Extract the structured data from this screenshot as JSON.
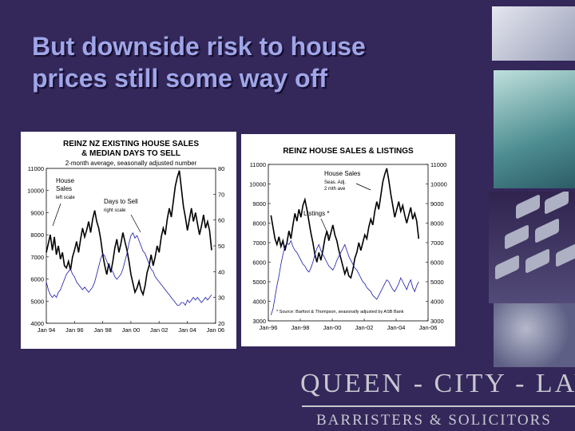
{
  "slide": {
    "title_lines": [
      "But downside risk to house",
      "prices still some way off"
    ],
    "logo_line1": "QUEEN - CITY - LAW",
    "logo_line2": "BARRISTERS & SOLICITORS",
    "colors": {
      "background": "#34275a",
      "title": "#9fa6e8",
      "series_sales": "#000000",
      "series_secondary": "#1a1aa8"
    }
  },
  "chart_data": [
    {
      "type": "line",
      "title": [
        "REINZ NZ EXISTING HOUSE SALES",
        "& MEDIAN DAYS TO SELL"
      ],
      "subtitle": "2-month average, seasonally adjusted number",
      "x_ticks": [
        "Jan 94",
        "Jan 96",
        "Jan 98",
        "Jan 00",
        "Jan 02",
        "Jan 04",
        "Jan 06"
      ],
      "x_range": [
        1994.0,
        2006.6
      ],
      "y_left": {
        "range": [
          4000,
          11000
        ],
        "ticks": [
          4000,
          5000,
          6000,
          7000,
          8000,
          9000,
          10000,
          11000
        ]
      },
      "y_right": {
        "range": [
          20,
          80
        ],
        "ticks": [
          20,
          30,
          40,
          50,
          60,
          70,
          80
        ]
      },
      "annotations": [
        {
          "lines": [
            "House",
            "Sales"
          ],
          "small": "left scale"
        },
        {
          "lines": [
            "Days to Sell"
          ],
          "small": "right scale"
        }
      ],
      "series": [
        {
          "axis": "left",
          "x": [
            1994.0,
            1994.15,
            1994.3,
            1994.45,
            1994.6,
            1994.75,
            1994.9,
            1995.05,
            1995.2,
            1995.35,
            1995.5,
            1995.65,
            1995.8,
            1995.95,
            1996.1,
            1996.25,
            1996.4,
            1996.55,
            1996.7,
            1996.85,
            1997.0,
            1997.15,
            1997.3,
            1997.45,
            1997.6,
            1997.75,
            1997.9,
            1998.05,
            1998.2,
            1998.35,
            1998.5,
            1998.65,
            1998.8,
            1998.95,
            1999.1,
            1999.25,
            1999.4,
            1999.55,
            1999.7,
            1999.85,
            2000.0,
            2000.15,
            2000.3,
            2000.45,
            2000.6,
            2000.75,
            2000.9,
            2001.05,
            2001.2,
            2001.35,
            2001.5,
            2001.65,
            2001.8,
            2001.95,
            2002.1,
            2002.25,
            2002.4,
            2002.55,
            2002.7,
            2002.85,
            2003.0,
            2003.15,
            2003.3,
            2003.45,
            2003.6,
            2003.75,
            2003.9,
            2004.05,
            2004.2,
            2004.35,
            2004.5,
            2004.65,
            2004.8,
            2004.95,
            2005.1,
            2005.25,
            2005.4,
            2005.55,
            2005.7,
            2005.85,
            2006.0,
            2006.15,
            2006.3
          ],
          "y": [
            7200,
            7600,
            8000,
            7300,
            7900,
            7100,
            7500,
            6900,
            7200,
            6600,
            6500,
            6800,
            6400,
            7000,
            7300,
            7700,
            7200,
            7800,
            8300,
            7900,
            8200,
            8600,
            8100,
            8700,
            9100,
            8600,
            8300,
            7800,
            7100,
            6600,
            6200,
            6700,
            6300,
            6800,
            7400,
            7800,
            7200,
            7600,
            8100,
            7700,
            7300,
            6800,
            6200,
            5800,
            5400,
            5600,
            5900,
            5500,
            5300,
            5700,
            6300,
            6600,
            7100,
            6600,
            7000,
            7500,
            7200,
            7900,
            8300,
            8000,
            8700,
            9200,
            8800,
            9500,
            10200,
            10600,
            10900,
            10100,
            9300,
            8800,
            8200,
            8700,
            9200,
            8600,
            9000,
            8500,
            8000,
            8400,
            8900,
            8300,
            8600,
            8200,
            7300
          ]
        },
        {
          "axis": "right",
          "x": [
            1994.0,
            1994.15,
            1994.3,
            1994.45,
            1994.6,
            1994.75,
            1994.9,
            1995.05,
            1995.2,
            1995.35,
            1995.5,
            1995.65,
            1995.8,
            1995.95,
            1996.1,
            1996.25,
            1996.4,
            1996.55,
            1996.7,
            1996.85,
            1997.0,
            1997.15,
            1997.3,
            1997.45,
            1997.6,
            1997.75,
            1997.9,
            1998.05,
            1998.2,
            1998.35,
            1998.5,
            1998.65,
            1998.8,
            1998.95,
            1999.1,
            1999.25,
            1999.4,
            1999.55,
            1999.7,
            1999.85,
            2000.0,
            2000.15,
            2000.3,
            2000.45,
            2000.6,
            2000.75,
            2000.9,
            2001.05,
            2001.2,
            2001.35,
            2001.5,
            2001.65,
            2001.8,
            2001.95,
            2002.1,
            2002.25,
            2002.4,
            2002.55,
            2002.7,
            2002.85,
            2003.0,
            2003.15,
            2003.3,
            2003.45,
            2003.6,
            2003.75,
            2003.9,
            2004.05,
            2004.2,
            2004.35,
            2004.5,
            2004.65,
            2004.8,
            2004.95,
            2005.1,
            2005.25,
            2005.4,
            2005.55,
            2005.7,
            2005.85,
            2006.0,
            2006.15,
            2006.3
          ],
          "y": [
            36,
            33,
            31,
            30,
            31,
            30,
            32,
            33,
            35,
            37,
            39,
            40,
            41,
            39,
            38,
            36,
            35,
            34,
            33,
            34,
            33,
            32,
            33,
            34,
            36,
            39,
            42,
            45,
            47,
            46,
            44,
            42,
            41,
            40,
            38,
            37,
            38,
            39,
            41,
            44,
            47,
            51,
            54,
            55,
            53,
            54,
            52,
            50,
            48,
            47,
            45,
            43,
            41,
            40,
            38,
            37,
            36,
            35,
            34,
            33,
            32,
            31,
            30,
            29,
            28,
            27,
            27,
            28,
            28,
            27,
            29,
            28,
            29,
            30,
            29,
            30,
            29,
            28,
            29,
            30,
            29,
            30,
            31
          ]
        }
      ]
    },
    {
      "type": "line",
      "title": "REINZ HOUSE SALES & LISTINGS",
      "x_ticks": [
        "Jan-96",
        "Jan-98",
        "Jan-00",
        "Jan-02",
        "Jan-04",
        "Jan-06"
      ],
      "x_range": [
        1994.8,
        2006.8
      ],
      "y_left": {
        "range": [
          3000,
          11000
        ],
        "ticks": [
          3000,
          4000,
          5000,
          6000,
          7000,
          8000,
          9000,
          10000,
          11000
        ]
      },
      "y_right": {
        "range": [
          3000,
          11000
        ],
        "ticks": [
          3000,
          4000,
          5000,
          6000,
          7000,
          8000,
          9000,
          10000,
          11000
        ]
      },
      "annotations": [
        {
          "lines": [
            "House Sales"
          ],
          "small_lines": [
            "Seas. Adj.",
            "2 mth ave"
          ]
        },
        {
          "lines": [
            "Listings *"
          ]
        },
        {
          "lines": [
            "* Source: Barfoot & Thompson, seasonally adjusted by ASB Bank"
          ]
        }
      ],
      "series": [
        {
          "axis": "left",
          "x": [
            1995.0,
            1995.15,
            1995.3,
            1995.45,
            1995.6,
            1995.75,
            1995.9,
            1996.05,
            1996.2,
            1996.35,
            1996.5,
            1996.65,
            1996.8,
            1996.95,
            1997.1,
            1997.25,
            1997.4,
            1997.55,
            1997.7,
            1997.85,
            1998.0,
            1998.15,
            1998.3,
            1998.45,
            1998.6,
            1998.75,
            1998.9,
            1999.05,
            1999.2,
            1999.35,
            1999.5,
            1999.65,
            1999.8,
            1999.95,
            2000.1,
            2000.25,
            2000.4,
            2000.55,
            2000.7,
            2000.85,
            2001.0,
            2001.15,
            2001.3,
            2001.45,
            2001.6,
            2001.75,
            2001.9,
            2002.05,
            2002.2,
            2002.35,
            2002.5,
            2002.65,
            2002.8,
            2002.95,
            2003.1,
            2003.25,
            2003.4,
            2003.55,
            2003.7,
            2003.85,
            2004.0,
            2004.15,
            2004.3,
            2004.45,
            2004.6,
            2004.75,
            2004.9,
            2005.05,
            2005.2,
            2005.35,
            2005.5,
            2005.65,
            2005.8,
            2005.95,
            2006.1
          ],
          "y": [
            8400,
            7800,
            7200,
            6900,
            7300,
            6800,
            7100,
            6600,
            7000,
            7600,
            7200,
            7900,
            8500,
            8100,
            8700,
            8300,
            8900,
            9200,
            8700,
            8100,
            7500,
            7000,
            6400,
            6000,
            6500,
            6100,
            6600,
            7200,
            7600,
            7100,
            7500,
            7900,
            7400,
            7100,
            6600,
            6200,
            5800,
            5400,
            5700,
            5300,
            5200,
            5600,
            6200,
            6500,
            7000,
            6600,
            7000,
            7400,
            7200,
            7800,
            8200,
            7900,
            8600,
            9100,
            8700,
            9400,
            10100,
            10500,
            10800,
            10200,
            9500,
            8900,
            8300,
            8700,
            9100,
            8600,
            8900,
            8400,
            8000,
            8400,
            8800,
            8200,
            8500,
            8100,
            7200
          ]
        },
        {
          "axis": "right",
          "x": [
            1995.0,
            1995.15,
            1995.3,
            1995.45,
            1995.6,
            1995.75,
            1995.9,
            1996.05,
            1996.2,
            1996.35,
            1996.5,
            1996.65,
            1996.8,
            1996.95,
            1997.1,
            1997.25,
            1997.4,
            1997.55,
            1997.7,
            1997.85,
            1998.0,
            1998.15,
            1998.3,
            1998.45,
            1998.6,
            1998.75,
            1998.9,
            1999.05,
            1999.2,
            1999.35,
            1999.5,
            1999.65,
            1999.8,
            1999.95,
            2000.1,
            2000.25,
            2000.4,
            2000.55,
            2000.7,
            2000.85,
            2001.0,
            2001.15,
            2001.3,
            2001.45,
            2001.6,
            2001.75,
            2001.9,
            2002.05,
            2002.2,
            2002.35,
            2002.5,
            2002.65,
            2002.8,
            2002.95,
            2003.1,
            2003.25,
            2003.4,
            2003.55,
            2003.7,
            2003.85,
            2004.0,
            2004.15,
            2004.3,
            2004.45,
            2004.6,
            2004.75,
            2004.9,
            2005.05,
            2005.2,
            2005.35,
            2005.5,
            2005.65,
            2005.8,
            2005.95,
            2006.1
          ],
          "y": [
            3300,
            3600,
            4200,
            4800,
            5300,
            5900,
            6400,
            6800,
            7000,
            6900,
            7100,
            6800,
            6600,
            6500,
            6300,
            6100,
            5900,
            5800,
            5600,
            5500,
            5700,
            6000,
            6400,
            6700,
            6900,
            6600,
            6400,
            6200,
            6000,
            5800,
            5700,
            5600,
            5800,
            6100,
            6300,
            6500,
            6700,
            6900,
            6600,
            6300,
            6100,
            5900,
            5700,
            5600,
            5400,
            5200,
            5000,
            4900,
            4700,
            4600,
            4500,
            4300,
            4200,
            4100,
            4300,
            4500,
            4700,
            4900,
            5100,
            5000,
            4800,
            4600,
            4500,
            4700,
            4900,
            5200,
            5000,
            4800,
            4600,
            4900,
            5100,
            4700,
            4500,
            4800,
            5000
          ]
        }
      ]
    }
  ]
}
